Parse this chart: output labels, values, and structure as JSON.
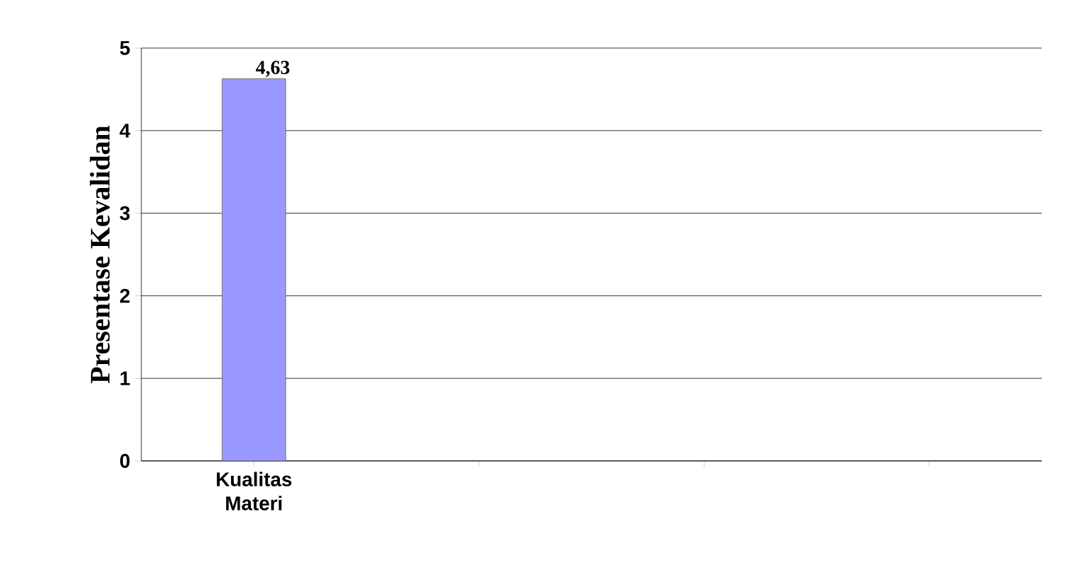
{
  "chart_data": {
    "type": "bar",
    "ylabel": "Presentase Kevalidan",
    "categories": [
      "Kualitas Materi",
      null,
      null,
      null
    ],
    "values": [
      4.63,
      null,
      null,
      null
    ],
    "value_labels": [
      "4,63",
      null,
      null,
      null
    ],
    "color": "#9999ff",
    "ylim": [
      0,
      5
    ],
    "yticks": [
      0,
      1,
      2,
      3,
      4,
      5
    ],
    "grid": "y"
  }
}
